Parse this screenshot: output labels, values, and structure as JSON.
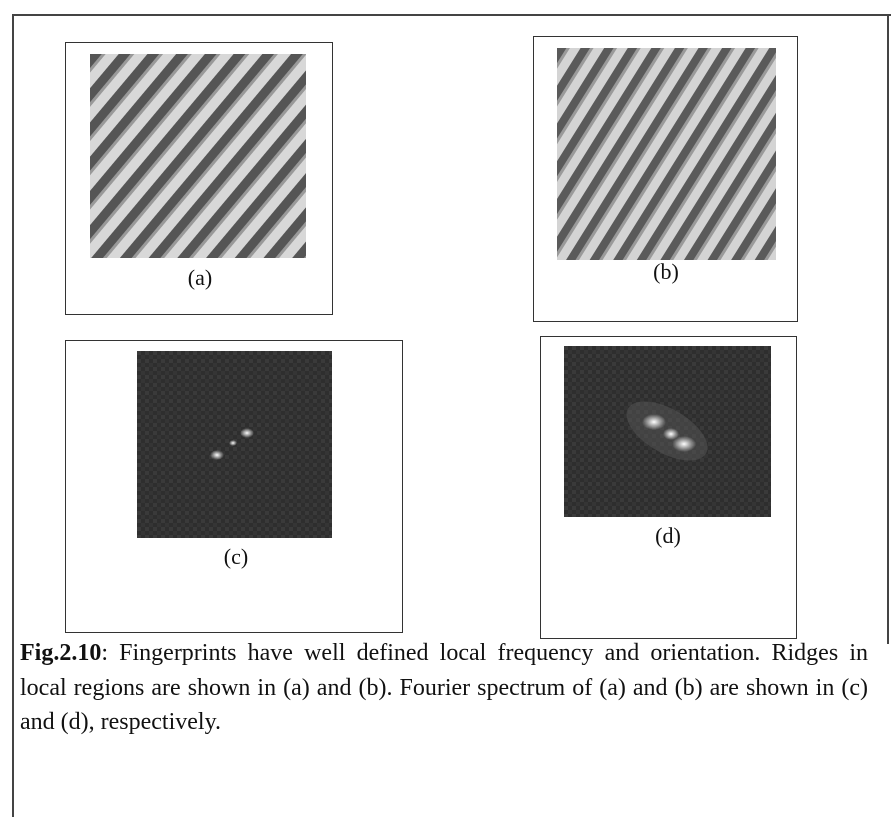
{
  "figure": {
    "panels": [
      {
        "label": "(a)"
      },
      {
        "label": "(b)"
      },
      {
        "label": "(c)"
      },
      {
        "label": "(d)"
      }
    ],
    "caption": {
      "label": "Fig.2.10",
      "text": ": Fingerprints have well defined local frequency and orientation. Ridges in local regions are shown in (a) and (b). Fourier spectrum of (a) and (b) are shown in (c) and (d), respectively."
    }
  }
}
